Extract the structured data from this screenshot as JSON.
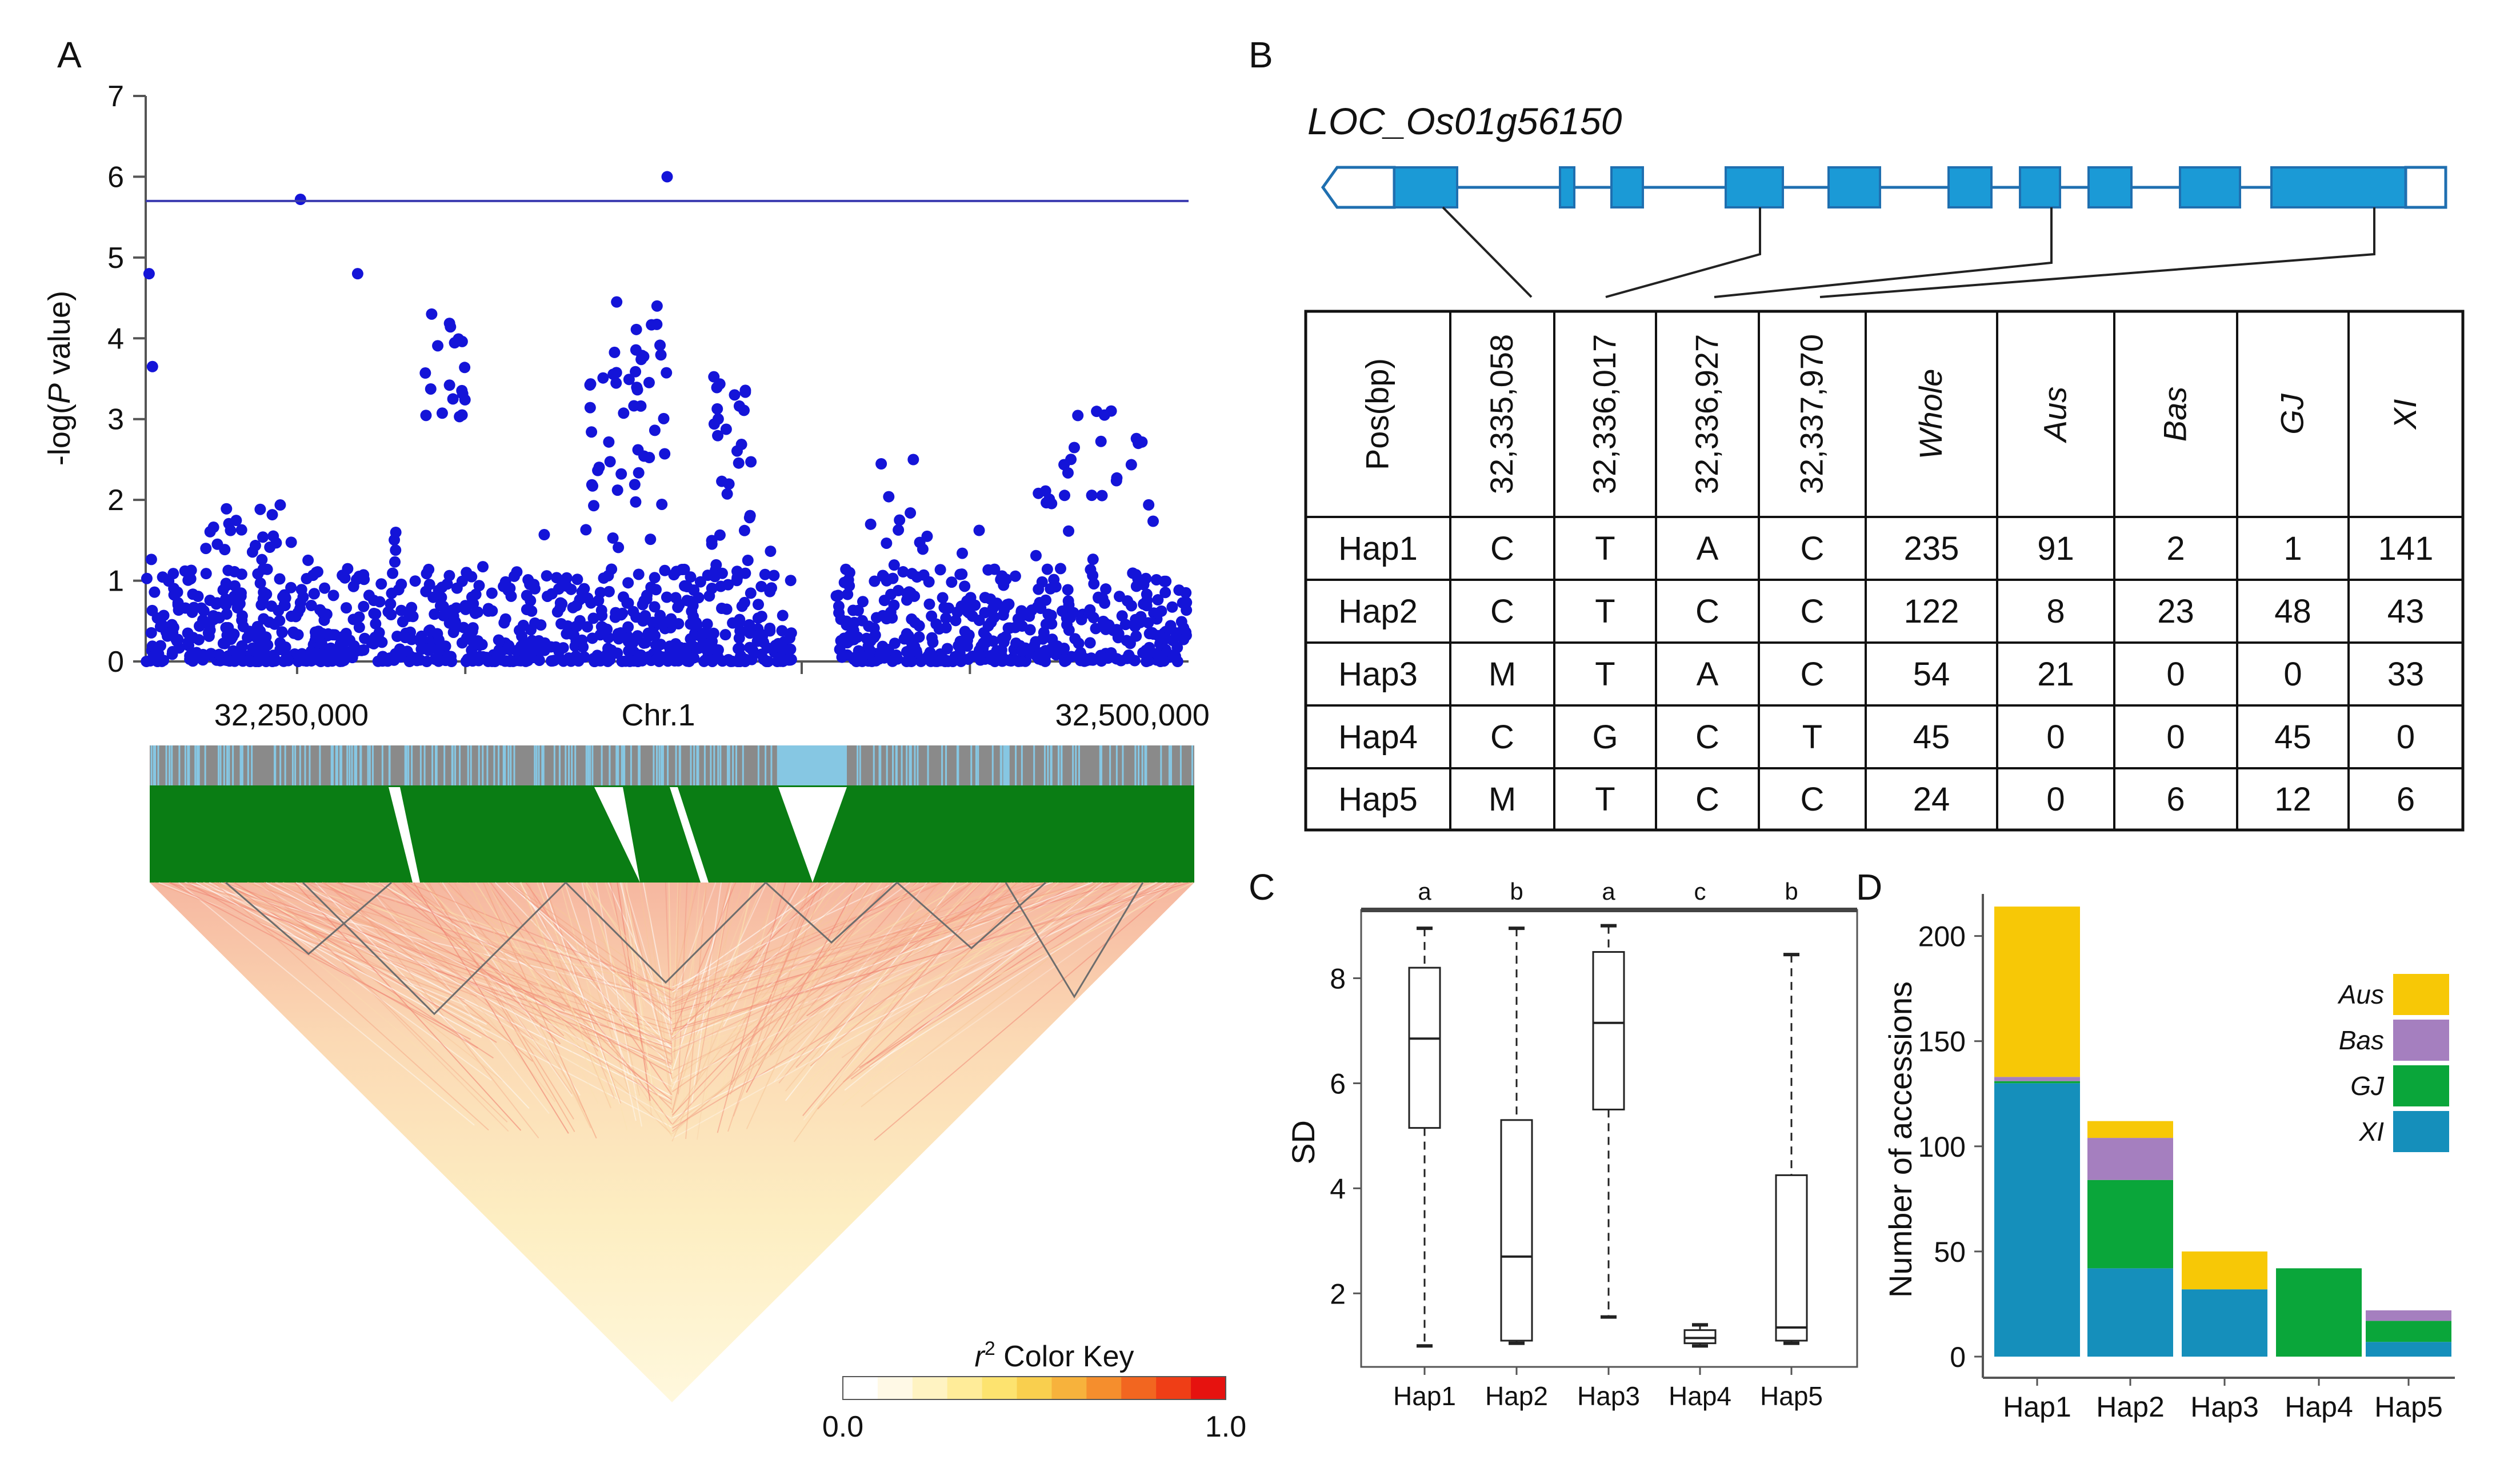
{
  "colors": {
    "points": "#1414d8",
    "threshold": "#3b3bb0",
    "exon": "#1b9ad6",
    "aus": "#f7c806",
    "bas": "#a57fbf",
    "gj": "#0aa63a",
    "xi": "#158fbb",
    "ld_green": "#0a7d14",
    "ld_gray": "#8a8a8a",
    "ld_blue": "#86c7e3"
  },
  "panels": {
    "a": {
      "letter": "A"
    },
    "b": {
      "letter": "B",
      "gene": "LOC_Os01g56150"
    },
    "c": {
      "letter": "C"
    },
    "d": {
      "letter": "D"
    }
  },
  "chart_data": [
    {
      "id": "manhattan",
      "type": "scatter",
      "title": "",
      "ylabel_pre": "-log(",
      "ylabel_ital": "P",
      "ylabel_post": " value)",
      "xlabel": "Chr.1",
      "ylim": [
        0,
        7
      ],
      "yticks": [
        "0",
        "1",
        "2",
        "3",
        "4",
        "5",
        "6",
        "7"
      ],
      "xtick_labels": [
        {
          "pos": 32250000,
          "label": "32,250,000"
        },
        {
          "pos": 32500000,
          "label": "32,500,000"
        }
      ],
      "xlim": [
        32205000,
        32515000
      ],
      "threshold": 5.7,
      "gap": [
        32397000,
        32410000
      ],
      "highlight_points": [
        {
          "x": 32206000,
          "y": 4.8
        },
        {
          "x": 32207000,
          "y": 3.65
        },
        {
          "x": 32251000,
          "y": 5.72
        },
        {
          "x": 32268000,
          "y": 4.8
        },
        {
          "x": 32360000,
          "y": 6.0
        },
        {
          "x": 32345000,
          "y": 4.45
        },
        {
          "x": 32357000,
          "y": 4.4
        },
        {
          "x": 32290000,
          "y": 4.3
        },
        {
          "x": 32492000,
          "y": 3.1
        },
        {
          "x": 32490000,
          "y": 3.05
        }
      ]
    },
    {
      "id": "ld",
      "type": "heatmap",
      "key_title_main": "r",
      "key_title_sup": "2",
      "key_title_rest": " Color Key",
      "key_min": "0.0",
      "key_max": "1.0",
      "key_colors": [
        "#ffffff",
        "#fff9e6",
        "#fff3c2",
        "#ffec99",
        "#fde36f",
        "#f9cf4e",
        "#f7b23c",
        "#f58e2d",
        "#f26620",
        "#ef3e16",
        "#e6120f"
      ]
    },
    {
      "id": "boxplot",
      "type": "box",
      "ylabel": "SD",
      "ylim": [
        0.6,
        9.3
      ],
      "yticks": [
        "2",
        "4",
        "6",
        "8"
      ],
      "categories": [
        "Hap1",
        "Hap2",
        "Hap3",
        "Hap4",
        "Hap5"
      ],
      "letters": [
        "a",
        "b",
        "a",
        "c",
        "b"
      ],
      "boxes": [
        {
          "min": 1.0,
          "q1": 5.15,
          "median": 6.85,
          "q3": 8.2,
          "max": 8.95
        },
        {
          "min": 1.05,
          "q1": 1.1,
          "median": 2.7,
          "q3": 5.3,
          "max": 8.95
        },
        {
          "min": 1.55,
          "q1": 5.5,
          "median": 7.15,
          "q3": 8.5,
          "max": 9.0
        },
        {
          "min": 1.0,
          "q1": 1.05,
          "median": 1.15,
          "q3": 1.3,
          "max": 1.4
        },
        {
          "min": 1.05,
          "q1": 1.1,
          "median": 1.35,
          "q3": 4.25,
          "max": 8.45
        }
      ]
    },
    {
      "id": "stacked_bar",
      "type": "bar",
      "ylabel": "Number of accessions",
      "ylim": [
        0,
        220
      ],
      "yticks": [
        "0",
        "50",
        "100",
        "150",
        "200"
      ],
      "categories": [
        "Hap1",
        "Hap2",
        "Hap3",
        "Hap4",
        "Hap5"
      ],
      "series": [
        {
          "name": "XI",
          "values": [
            130,
            42,
            32,
            0,
            7
          ]
        },
        {
          "name": "GJ",
          "values": [
            1,
            42,
            0,
            42,
            10
          ]
        },
        {
          "name": "Bas",
          "values": [
            2,
            20,
            0,
            0,
            5
          ]
        },
        {
          "name": "Aus",
          "values": [
            81,
            8,
            18,
            0,
            0
          ]
        }
      ],
      "legend": [
        "Aus",
        "Bas",
        "GJ",
        "XI"
      ]
    },
    {
      "id": "haplotype_table",
      "type": "table",
      "headers": [
        "Pos(bp)",
        "32,335,058",
        "32,336,017",
        "32,336,927",
        "32,337,970",
        "Whole",
        "Aus",
        "Bas",
        "GJ",
        "XI"
      ],
      "rows": [
        [
          "Hap1",
          "C",
          "T",
          "A",
          "C",
          "235",
          "91",
          "2",
          "1",
          "141"
        ],
        [
          "Hap2",
          "C",
          "T",
          "C",
          "C",
          "122",
          "8",
          "23",
          "48",
          "43"
        ],
        [
          "Hap3",
          "M",
          "T",
          "A",
          "C",
          "54",
          "21",
          "0",
          "0",
          "33"
        ],
        [
          "Hap4",
          "C",
          "G",
          "C",
          "T",
          "45",
          "0",
          "0",
          "45",
          "0"
        ],
        [
          "Hap5",
          "M",
          "T",
          "C",
          "C",
          "24",
          "0",
          "6",
          "12",
          "6"
        ]
      ]
    }
  ]
}
